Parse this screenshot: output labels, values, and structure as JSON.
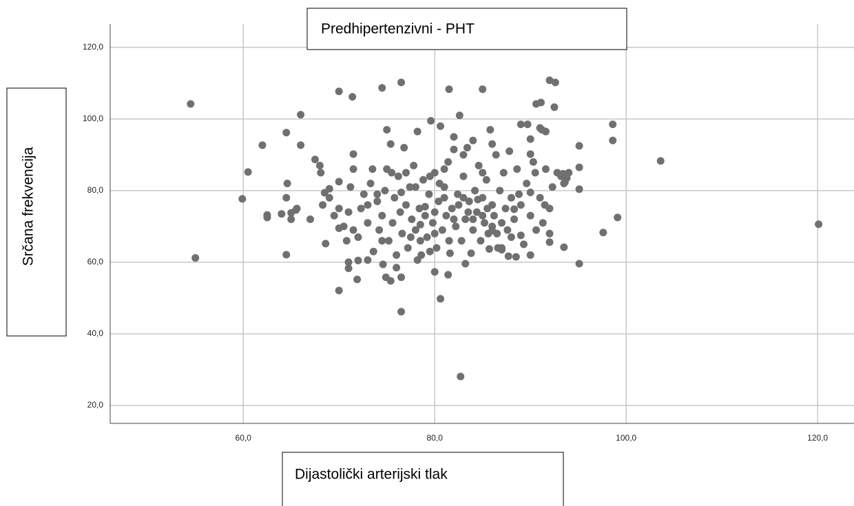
{
  "chart_data": {
    "type": "scatter",
    "title": "Predhipertenzivni - PHT",
    "x_label": "Dijastolički arterijski tlak",
    "y_label": "Srčana frekvencija",
    "color": "#707070",
    "grid": true,
    "xlim": [
      46.1,
      123.8
    ],
    "ylim": [
      15,
      126.5
    ],
    "xticks": [
      {
        "value": 60,
        "label": "60,0"
      },
      {
        "value": 80,
        "label": "80,0"
      },
      {
        "value": 100,
        "label": "100,0"
      },
      {
        "value": 120,
        "label": "120,0"
      }
    ],
    "yticks": [
      {
        "value": 20,
        "label": "20,0"
      },
      {
        "value": 40,
        "label": "40,0"
      },
      {
        "value": 60,
        "label": "60,0"
      },
      {
        "value": 80,
        "label": "80,0"
      },
      {
        "value": 100,
        "label": "100,0"
      },
      {
        "value": 120,
        "label": "120,0"
      }
    ],
    "x": [
      54.5,
      55.0,
      59.9,
      60.5,
      62.0,
      62.5,
      62.5,
      64.0,
      64.5,
      64.5,
      64.6,
      64.5,
      65.0,
      65.0,
      65.5,
      65.6,
      66.0,
      66.0,
      67.0,
      67.5,
      68.0,
      68.1,
      68.5,
      68.3,
      68.6,
      70.0,
      70.0,
      71.4,
      71.0,
      71.0,
      71.5,
      71.9,
      74.5,
      76.5,
      76.5,
      81.5,
      85.0,
      80.6,
      82.7,
      92.0,
      92.6,
      90.6,
      91.1,
      92.5,
      98.6,
      98.6,
      103.6,
      120.1,
      97.6,
      99.1,
      95.1,
      95.1,
      95.1,
      95.1,
      93.5,
      94.0,
      93.8,
      93.6,
      93.4,
      91.0,
      91.6,
      91.2,
      89.7,
      90.0,
      90.0,
      88.8,
      88.3,
      92.0,
      87.7,
      87.0,
      86.0,
      85.7,
      83.2,
      81.4,
      80.0,
      78.2,
      76.5,
      74.9,
      75.4,
      74.6,
      73.0,
      70.5,
      70.8,
      71.0,
      71.2,
      71.5,
      72.0,
      72.3,
      72.6,
      73.0,
      73.3,
      73.6,
      74.0,
      74.2,
      74.5,
      74.8,
      75.0,
      75.2,
      75.4,
      75.6,
      75.8,
      76.0,
      76.2,
      76.4,
      76.6,
      76.8,
      77.0,
      77.2,
      77.4,
      77.6,
      77.8,
      78.0,
      78.2,
      78.4,
      78.6,
      78.8,
      79.0,
      79.2,
      79.4,
      79.6,
      79.8,
      80.0,
      80.2,
      80.4,
      80.6,
      80.8,
      81.0,
      81.2,
      81.4,
      81.6,
      81.8,
      82.0,
      82.2,
      82.4,
      82.6,
      82.8,
      83.0,
      83.2,
      83.4,
      83.6,
      83.8,
      84.0,
      84.2,
      84.4,
      84.6,
      84.8,
      85.0,
      85.2,
      85.4,
      85.6,
      85.8,
      86.0,
      86.2,
      86.4,
      86.6,
      86.8,
      87.0,
      87.2,
      87.4,
      87.6,
      87.8,
      88.0,
      88.3,
      88.6,
      89.0,
      89.0,
      89.3,
      89.6,
      90.0,
      90.0,
      90.3,
      90.6,
      91.0,
      91.3,
      91.6,
      92.0,
      92.3,
      92.8,
      93.2,
      93.5,
      70.0,
      69.5,
      70.0,
      72.0,
      73.5,
      74.0,
      75.0,
      75.5,
      76.0,
      77.0,
      78.0,
      78.5,
      79.0,
      79.5,
      80.0,
      80.0,
      80.5,
      81.0,
      81.5,
      82.0,
      82.5,
      83.0,
      83.5,
      84.0,
      84.5,
      85.0,
      85.5,
      86.0,
      86.5,
      87.0,
      88.0,
      88.5,
      89.0,
      90.0,
      90.5,
      91.5,
      92.0,
      76.5,
      77.5,
      78.5,
      79.5,
      81.0,
      82.0,
      83.0,
      84.0,
      85.0,
      86.0,
      73.0,
      71.5,
      74.5,
      69.0,
      69.0,
      70.0
    ],
    "values": [
      104.2,
      61.2,
      77.7,
      85.2,
      92.7,
      72.5,
      73.2,
      73.5,
      96.2,
      78.0,
      82.0,
      62.1,
      72.0,
      73.8,
      74.6,
      75.0,
      101.2,
      92.7,
      72.0,
      88.7,
      87.0,
      85.0,
      79.4,
      76.0,
      65.2,
      107.7,
      52.1,
      106.2,
      60.0,
      58.3,
      90.2,
      55.2,
      108.7,
      110.2,
      46.2,
      108.3,
      108.3,
      49.8,
      28.1,
      110.8,
      110.2,
      104.2,
      104.6,
      103.3,
      98.5,
      94.0,
      88.3,
      70.6,
      68.3,
      72.5,
      92.5,
      86.5,
      80.4,
      59.6,
      64.2,
      85.0,
      83.5,
      82.3,
      84.7,
      97.5,
      96.5,
      97.0,
      98.5,
      94.4,
      90.2,
      79.0,
      74.8,
      65.6,
      61.7,
      64.0,
      68.8,
      63.7,
      59.6,
      56.5,
      57.3,
      60.6,
      55.8,
      55.8,
      54.8,
      59.4,
      60.6,
      70,
      66,
      74,
      81,
      86,
      67,
      75,
      79,
      71,
      82,
      63,
      77,
      69,
      73,
      80,
      86,
      66,
      93,
      71,
      78,
      62,
      84,
      74,
      68,
      92,
      76,
      64,
      81,
      72,
      87,
      69,
      96.5,
      75,
      62,
      83,
      73,
      67,
      79,
      99.5,
      71,
      85,
      64,
      77,
      98,
      69,
      81,
      73,
      88,
      62.5,
      75,
      95,
      70,
      79,
      101,
      66,
      84,
      72,
      92,
      77,
      62.5,
      69,
      80,
      74,
      87,
      66,
      78,
      71,
      83,
      68,
      97,
      76,
      73,
      90,
      64,
      80,
      71,
      85,
      75,
      69,
      91,
      78,
      72,
      86,
      98.5,
      76,
      65,
      82,
      73,
      62,
      88,
      69,
      78,
      71,
      86,
      75,
      81,
      85,
      84,
      82,
      75,
      73,
      69.5,
      60.5,
      86,
      79,
      97,
      85,
      58.5,
      85,
      81,
      66,
      75.5,
      63,
      68,
      74,
      82,
      78,
      66,
      72,
      76,
      78,
      74,
      72,
      77.5,
      73,
      75,
      70,
      68,
      63.5,
      67,
      61.5,
      67.5,
      79.5,
      85,
      76,
      68,
      79.5,
      67,
      70.5,
      84,
      86,
      91.5,
      90,
      94,
      85,
      93,
      76,
      69,
      66,
      78,
      80.5,
      82.5
    ]
  }
}
